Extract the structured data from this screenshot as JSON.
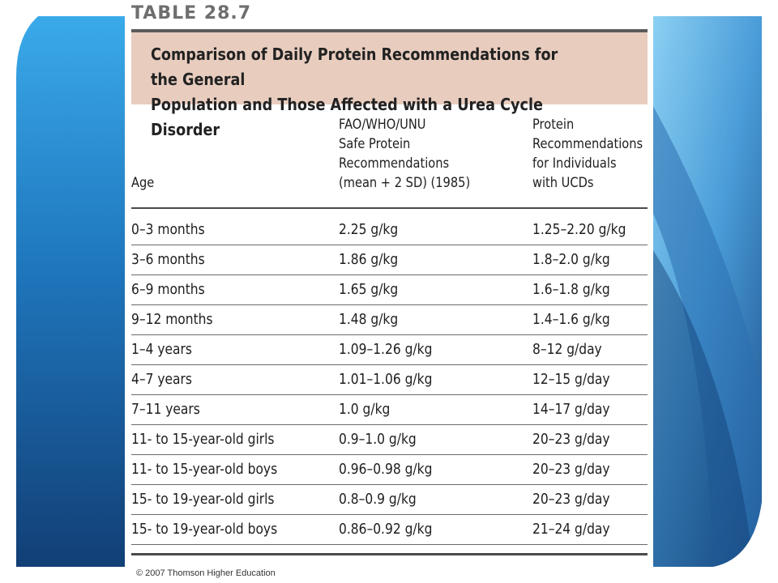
{
  "table": {
    "label": "TABLE 28.7",
    "title_line1": "Comparison of Daily Protein Recommendations for the General",
    "title_line2": "Population and Those Affected with a Urea Cycle Disorder",
    "headers": {
      "age": "Age",
      "fao": [
        "FAO/WHO/UNU",
        "Safe Protein",
        "Recommendations",
        "(mean + 2 SD) (1985)"
      ],
      "ucd": [
        "Protein",
        "Recommendations",
        "for Individuals",
        "with UCDs"
      ]
    },
    "rows": [
      {
        "age": "0–3 months",
        "fao": "2.25 g/kg",
        "ucd": "1.25–2.20 g/kg"
      },
      {
        "age": "3–6 months",
        "fao": "1.86 g/kg",
        "ucd": "1.8–2.0 g/kg"
      },
      {
        "age": "6–9 months",
        "fao": "1.65 g/kg",
        "ucd": "1.6–1.8 g/kg"
      },
      {
        "age": "9–12 months",
        "fao": "1.48 g/kg",
        "ucd": "1.4–1.6 g/kg"
      },
      {
        "age": "1–4 years",
        "fao": "1.09–1.26 g/kg",
        "ucd": "8–12 g/day"
      },
      {
        "age": "4–7 years",
        "fao": "1.01–1.06 g/kg",
        "ucd": "12–15 g/day"
      },
      {
        "age": "7–11 years",
        "fao": "1.0 g/kg",
        "ucd": "14–17 g/day"
      },
      {
        "age": "11- to 15-year-old girls",
        "fao": "0.9–1.0 g/kg",
        "ucd": "20–23 g/day"
      },
      {
        "age": "11- to 15-year-old boys",
        "fao": "0.96–0.98 g/kg",
        "ucd": "20–23 g/day"
      },
      {
        "age": "15- to 19-year-old girls",
        "fao": "0.8–0.9 g/kg",
        "ucd": "20–23 g/day"
      },
      {
        "age": "15- to 19-year-old boys",
        "fao": "0.86–0.92 g/kg",
        "ucd": "21–24 g/day"
      }
    ]
  },
  "footer": {
    "copyright": "© 2007 Thomson Higher Education"
  },
  "colors": {
    "title_band": "#e8cdbf",
    "slide_blue_dark": "#14457e",
    "slide_blue_light": "#7cc3ee"
  }
}
